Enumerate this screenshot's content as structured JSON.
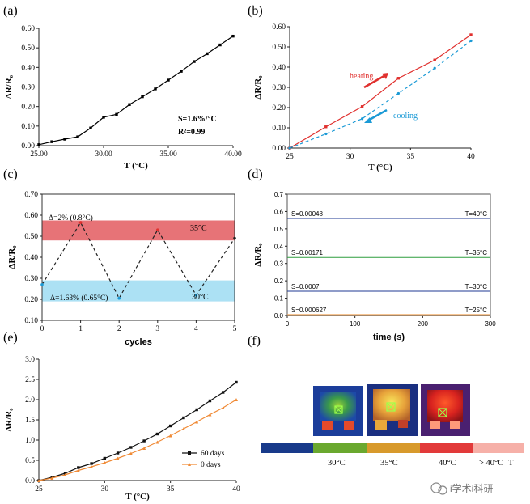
{
  "chart_data": [
    {
      "panel": "(a)",
      "type": "line",
      "xlabel": "T (°C)",
      "ylabel": "ΔR/R₀",
      "xlim": [
        25,
        40
      ],
      "ylim": [
        0,
        0.6
      ],
      "xticks": [
        25,
        30,
        35,
        40
      ],
      "yticks": [
        0.0,
        0.1,
        0.2,
        0.3,
        0.4,
        0.5,
        0.6
      ],
      "series": [
        {
          "color": "#000000",
          "x": [
            25,
            26,
            27,
            28,
            29,
            30,
            31,
            32,
            33,
            34,
            35,
            36,
            37,
            38,
            39,
            40
          ],
          "y": [
            0.005,
            0.02,
            0.033,
            0.045,
            0.09,
            0.145,
            0.16,
            0.21,
            0.25,
            0.29,
            0.335,
            0.38,
            0.43,
            0.47,
            0.515,
            0.56
          ]
        }
      ],
      "annotations": [
        "S=1.6%/°C",
        "R²=0.99"
      ]
    },
    {
      "panel": "(b)",
      "type": "line",
      "xlabel": "T (°C)",
      "ylabel": "ΔR/R₀",
      "xlim": [
        25,
        40
      ],
      "ylim": [
        0,
        0.6
      ],
      "xticks": [
        25,
        30,
        35,
        40
      ],
      "yticks": [
        0.0,
        0.1,
        0.2,
        0.3,
        0.4,
        0.5,
        0.6
      ],
      "series": [
        {
          "name": "heating",
          "color": "#e0302e",
          "x": [
            25,
            28,
            31,
            34,
            37,
            40
          ],
          "y": [
            0.0,
            0.105,
            0.205,
            0.345,
            0.435,
            0.56
          ]
        },
        {
          "name": "cooling",
          "color": "#1b9ad6",
          "x": [
            25,
            28,
            31,
            34,
            37,
            40
          ],
          "y": [
            0.0,
            0.07,
            0.145,
            0.27,
            0.395,
            0.53
          ]
        }
      ]
    },
    {
      "panel": "(c)",
      "type": "line",
      "xlabel": "cycles",
      "ylabel": "ΔR/R₀",
      "xlim": [
        0,
        5
      ],
      "ylim": [
        0.1,
        0.7
      ],
      "xticks": [
        0,
        1,
        2,
        3,
        4,
        5
      ],
      "yticks": [
        0.1,
        0.2,
        0.3,
        0.4,
        0.5,
        0.6,
        0.7
      ],
      "bands": [
        {
          "from": 0.48,
          "to": 0.575,
          "color": "#e35a5f",
          "label": "35°C",
          "note": "Δ=2% (0.8°C)"
        },
        {
          "from": 0.19,
          "to": 0.29,
          "color": "#9ddcf2",
          "label": "30°C",
          "note": "Δ=1.63% (0.65°C)"
        }
      ],
      "series": [
        {
          "color": "#222222",
          "x": [
            0,
            1,
            2,
            3,
            4,
            5
          ],
          "y": [
            0.27,
            0.565,
            0.205,
            0.53,
            0.22,
            0.49
          ]
        }
      ]
    },
    {
      "panel": "(d)",
      "type": "line",
      "xlabel": "time (s)",
      "ylabel": "ΔR/R₀",
      "xlim": [
        0,
        300
      ],
      "ylim": [
        0,
        0.7
      ],
      "xticks": [
        0,
        100,
        200,
        300
      ],
      "yticks": [
        0,
        0.1,
        0.2,
        0.3,
        0.4,
        0.5,
        0.6,
        0.7
      ],
      "series": [
        {
          "name": "T=40°C",
          "color": "#1f3a93",
          "y": 0.56,
          "slope_label": "S=0.00048"
        },
        {
          "name": "T=35°C",
          "color": "#2e9e3e",
          "y": 0.335,
          "slope_label": "S=0.00171"
        },
        {
          "name": "T=30°C",
          "color": "#1f3a93",
          "y": 0.14,
          "slope_label": "S=0.0007"
        },
        {
          "name": "T=25°C",
          "color": "#f0a050",
          "y": 0.005,
          "slope_label": "S=0.000627"
        }
      ]
    },
    {
      "panel": "(e)",
      "type": "line",
      "xlabel": "T (°C)",
      "ylabel": "ΔR/R₀",
      "xlim": [
        25,
        40
      ],
      "ylim": [
        0,
        3.0
      ],
      "xticks": [
        25,
        30,
        35,
        40
      ],
      "yticks": [
        0.0,
        0.5,
        1.0,
        1.5,
        2.0,
        2.5,
        3.0
      ],
      "legend": "bottom-right",
      "series": [
        {
          "name": "60 days",
          "color": "#111111",
          "x": [
            25,
            26,
            27,
            28,
            29,
            30,
            31,
            32,
            33,
            34,
            35,
            36,
            37,
            38,
            39,
            40
          ],
          "y": [
            0.0,
            0.08,
            0.18,
            0.32,
            0.42,
            0.55,
            0.68,
            0.82,
            0.98,
            1.15,
            1.35,
            1.55,
            1.75,
            1.97,
            2.18,
            2.43
          ]
        },
        {
          "name": "0 days",
          "color": "#f08a35",
          "x": [
            25,
            26,
            27,
            28,
            29,
            30,
            31,
            32,
            33,
            34,
            35,
            36,
            37,
            38,
            39,
            40
          ],
          "y": [
            0.0,
            0.06,
            0.14,
            0.25,
            0.34,
            0.44,
            0.55,
            0.67,
            0.8,
            0.95,
            1.11,
            1.28,
            1.45,
            1.63,
            1.8,
            2.0
          ]
        }
      ]
    }
  ],
  "panel_f": {
    "label": "(f)",
    "scale_colors": [
      "#183a8a",
      "#6aa82f",
      "#d89a2c",
      "#e23a3a",
      "#f6b0a8"
    ],
    "scale_labels": [
      "30°C",
      "35°C",
      "40°C",
      "> 40°C",
      "T"
    ]
  },
  "watermark": "i学术i科研"
}
